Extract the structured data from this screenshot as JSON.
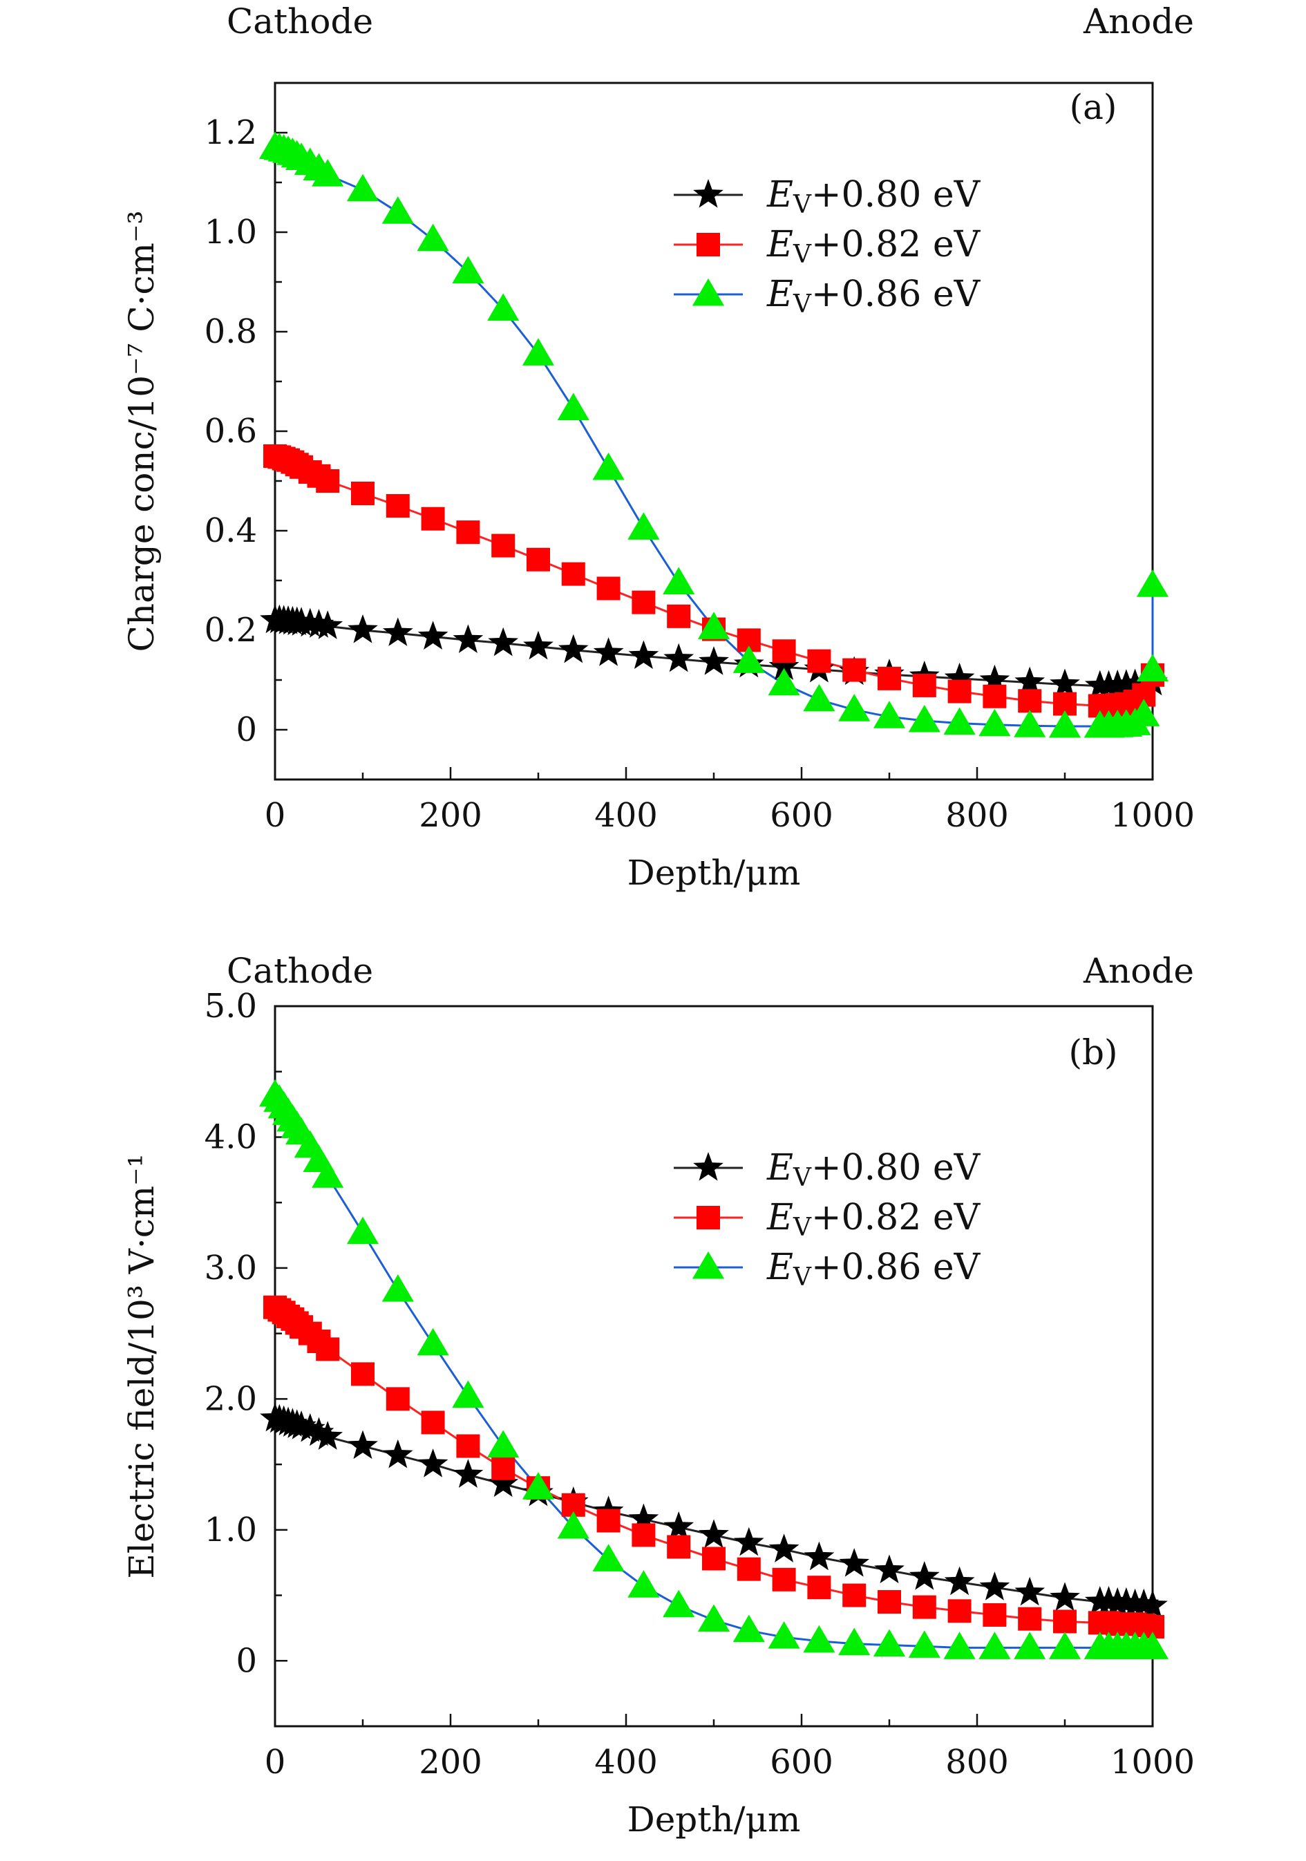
{
  "chart_data": [
    {
      "type": "line",
      "panel_label": "(a)",
      "left_label": "Cathode",
      "right_label": "Anode",
      "xlabel": "Depth/μm",
      "ylabel": "Charge conc/10⁻⁷ C·cm⁻³",
      "xlim": [
        0,
        1000
      ],
      "ylim": [
        -0.1,
        1.3
      ],
      "xticks": [
        0,
        200,
        400,
        600,
        800,
        1000
      ],
      "xtick_labels": [
        "0",
        "200",
        "400",
        "600",
        "800",
        "1000"
      ],
      "yticks": [
        0,
        0.2,
        0.4,
        0.6,
        0.8,
        1.0,
        1.2
      ],
      "ytick_labels": [
        "0",
        "0.2",
        "0.4",
        "0.6",
        "0.8",
        "1.0",
        "1.2"
      ],
      "legend_position": "upper-right",
      "series": [
        {
          "name": "EV+0.80 eV",
          "legend": {
            "prefix": "E",
            "sub": "V",
            "suffix": "+0.80 eV"
          },
          "marker": "star",
          "marker_color": "#000000",
          "line_color": "#222222",
          "x": [
            0,
            5,
            10,
            15,
            20,
            25,
            30,
            40,
            50,
            60,
            100,
            140,
            180,
            220,
            260,
            300,
            340,
            380,
            420,
            460,
            500,
            540,
            580,
            620,
            660,
            700,
            740,
            780,
            820,
            860,
            900,
            940,
            950,
            960,
            970,
            980,
            990,
            1000
          ],
          "y": [
            0.22,
            0.22,
            0.219,
            0.218,
            0.217,
            0.216,
            0.215,
            0.213,
            0.211,
            0.208,
            0.2,
            0.194,
            0.187,
            0.18,
            0.174,
            0.167,
            0.16,
            0.154,
            0.148,
            0.142,
            0.136,
            0.131,
            0.126,
            0.121,
            0.116,
            0.111,
            0.107,
            0.103,
            0.099,
            0.095,
            0.091,
            0.088,
            0.088,
            0.089,
            0.09,
            0.091,
            0.093,
            0.095
          ]
        },
        {
          "name": "EV+0.82 eV",
          "legend": {
            "prefix": "E",
            "sub": "V",
            "suffix": "+0.82 eV"
          },
          "marker": "square",
          "marker_color": "#ff0000",
          "line_color": "#ff2222",
          "x": [
            0,
            5,
            10,
            15,
            20,
            25,
            30,
            40,
            50,
            60,
            100,
            140,
            180,
            220,
            260,
            300,
            340,
            380,
            420,
            460,
            500,
            540,
            580,
            620,
            660,
            700,
            740,
            780,
            820,
            860,
            900,
            940,
            950,
            960,
            970,
            980,
            990,
            1000
          ],
          "y": [
            0.55,
            0.548,
            0.545,
            0.542,
            0.538,
            0.533,
            0.528,
            0.518,
            0.51,
            0.5,
            0.475,
            0.45,
            0.424,
            0.397,
            0.37,
            0.342,
            0.313,
            0.284,
            0.256,
            0.228,
            0.202,
            0.18,
            0.158,
            0.138,
            0.12,
            0.103,
            0.089,
            0.077,
            0.067,
            0.058,
            0.052,
            0.048,
            0.049,
            0.05,
            0.052,
            0.057,
            0.07,
            0.11
          ]
        },
        {
          "name": "EV+0.86 eV",
          "legend": {
            "prefix": "E",
            "sub": "V",
            "suffix": "+0.86 eV"
          },
          "marker": "triangle",
          "marker_color": "#00ee00",
          "line_color": "#1a5fd6",
          "x": [
            0,
            5,
            10,
            15,
            20,
            25,
            30,
            40,
            50,
            60,
            100,
            140,
            180,
            220,
            260,
            300,
            340,
            380,
            420,
            460,
            500,
            540,
            580,
            620,
            660,
            700,
            740,
            780,
            820,
            860,
            900,
            940,
            950,
            960,
            970,
            980,
            990,
            1000
          ],
          "y": [
            1.17,
            1.168,
            1.165,
            1.162,
            1.158,
            1.153,
            1.148,
            1.138,
            1.127,
            1.115,
            1.085,
            1.04,
            0.985,
            0.92,
            0.845,
            0.755,
            0.645,
            0.525,
            0.405,
            0.295,
            0.205,
            0.137,
            0.092,
            0.06,
            0.04,
            0.026,
            0.018,
            0.013,
            0.01,
            0.008,
            0.007,
            0.007,
            0.007,
            0.008,
            0.009,
            0.012,
            0.03,
            0.12
          ]
        }
      ],
      "extra_points": [
        {
          "series": "EV+0.86 eV",
          "x": 1000,
          "y": 0.29
        }
      ]
    },
    {
      "type": "line",
      "panel_label": "(b)",
      "left_label": "Cathode",
      "right_label": "Anode",
      "xlabel": "Depth/μm",
      "ylabel": "Electric field/10³ V·cm⁻¹",
      "xlim": [
        0,
        1000
      ],
      "ylim": [
        -0.5,
        5.0
      ],
      "xticks": [
        0,
        200,
        400,
        600,
        800,
        1000
      ],
      "xtick_labels": [
        "0",
        "200",
        "400",
        "600",
        "800",
        "1000"
      ],
      "yticks": [
        0,
        1.0,
        2.0,
        3.0,
        4.0,
        5.0
      ],
      "ytick_labels": [
        "0",
        "1.0",
        "2.0",
        "3.0",
        "4.0",
        "5.0"
      ],
      "legend_position": "upper-right",
      "series": [
        {
          "name": "EV+0.80 eV",
          "legend": {
            "prefix": "E",
            "sub": "V",
            "suffix": "+0.80 eV"
          },
          "marker": "star",
          "marker_color": "#000000",
          "line_color": "#222222",
          "x": [
            0,
            5,
            10,
            15,
            20,
            25,
            30,
            40,
            50,
            60,
            100,
            140,
            180,
            220,
            260,
            300,
            340,
            380,
            420,
            460,
            500,
            540,
            580,
            620,
            660,
            700,
            740,
            780,
            820,
            860,
            900,
            940,
            950,
            960,
            970,
            980,
            990,
            1000
          ],
          "y": [
            1.85,
            1.84,
            1.83,
            1.82,
            1.81,
            1.8,
            1.79,
            1.77,
            1.74,
            1.71,
            1.64,
            1.57,
            1.5,
            1.42,
            1.35,
            1.28,
            1.21,
            1.14,
            1.08,
            1.02,
            0.96,
            0.9,
            0.85,
            0.79,
            0.74,
            0.69,
            0.64,
            0.6,
            0.56,
            0.52,
            0.48,
            0.45,
            0.45,
            0.44,
            0.44,
            0.43,
            0.43,
            0.42
          ]
        },
        {
          "name": "EV+0.82 eV",
          "legend": {
            "prefix": "E",
            "sub": "V",
            "suffix": "+0.82 eV"
          },
          "marker": "square",
          "marker_color": "#ff0000",
          "line_color": "#ff2222",
          "x": [
            0,
            5,
            10,
            15,
            20,
            25,
            30,
            40,
            50,
            60,
            100,
            140,
            180,
            220,
            260,
            300,
            340,
            380,
            420,
            460,
            500,
            540,
            580,
            620,
            660,
            700,
            740,
            780,
            820,
            860,
            900,
            940,
            950,
            960,
            970,
            980,
            990,
            1000
          ],
          "y": [
            2.7,
            2.68,
            2.66,
            2.63,
            2.61,
            2.58,
            2.55,
            2.5,
            2.44,
            2.38,
            2.19,
            2.0,
            1.82,
            1.64,
            1.47,
            1.32,
            1.19,
            1.07,
            0.96,
            0.87,
            0.78,
            0.7,
            0.62,
            0.56,
            0.5,
            0.45,
            0.41,
            0.38,
            0.35,
            0.32,
            0.3,
            0.29,
            0.29,
            0.28,
            0.28,
            0.28,
            0.27,
            0.26
          ]
        },
        {
          "name": "EV+0.86 eV",
          "legend": {
            "prefix": "E",
            "sub": "V",
            "suffix": "+0.86 eV"
          },
          "marker": "triangle",
          "marker_color": "#00ee00",
          "line_color": "#1a5fd6",
          "x": [
            0,
            5,
            10,
            15,
            20,
            25,
            30,
            40,
            50,
            60,
            100,
            140,
            180,
            220,
            260,
            300,
            340,
            380,
            420,
            460,
            500,
            540,
            580,
            620,
            660,
            700,
            740,
            780,
            820,
            860,
            900,
            940,
            950,
            960,
            970,
            980,
            990,
            1000
          ],
          "y": [
            4.32,
            4.28,
            4.23,
            4.18,
            4.13,
            4.08,
            4.03,
            3.93,
            3.82,
            3.7,
            3.27,
            2.83,
            2.42,
            2.02,
            1.64,
            1.32,
            1.02,
            0.77,
            0.57,
            0.42,
            0.31,
            0.23,
            0.18,
            0.15,
            0.13,
            0.12,
            0.11,
            0.1,
            0.1,
            0.1,
            0.1,
            0.1,
            0.1,
            0.1,
            0.1,
            0.1,
            0.1,
            0.1
          ]
        }
      ],
      "extra_points": []
    }
  ]
}
